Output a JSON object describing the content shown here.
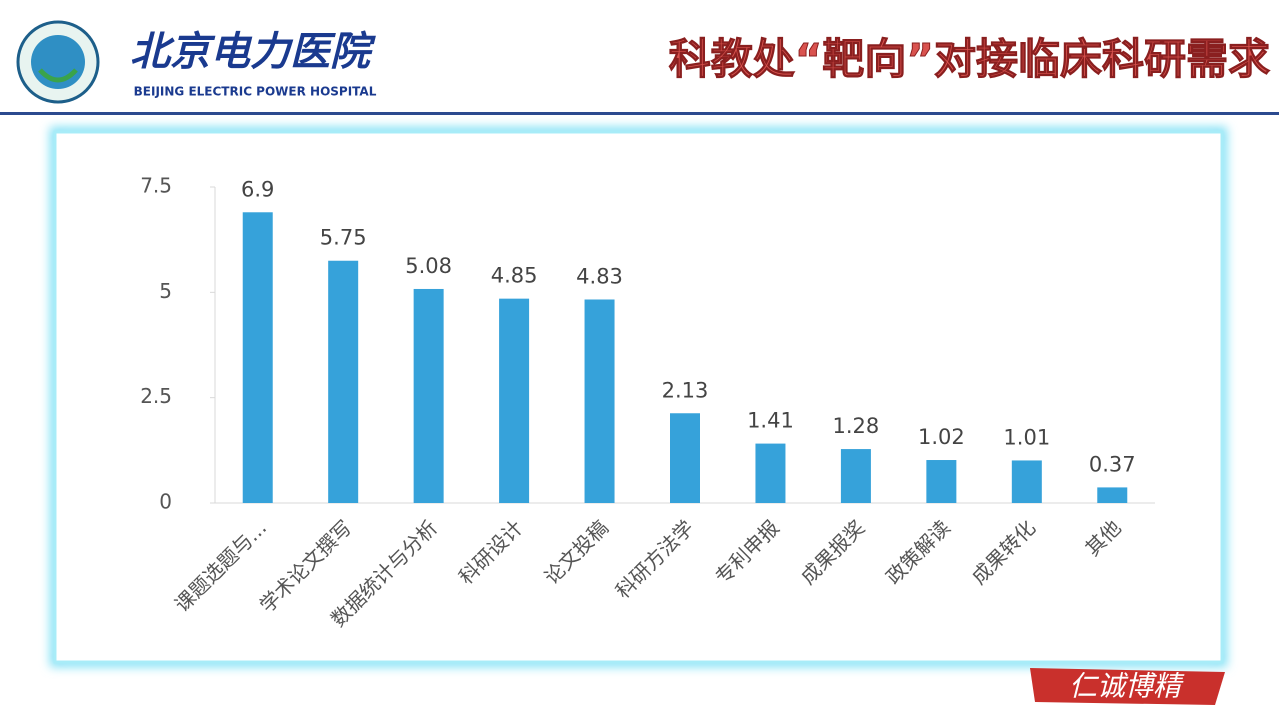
{
  "header": {
    "hospital_name": "北京电力医院",
    "hospital_name_en": "BEIJING ELECTRIC POWER HOSPITAL",
    "title": "科教处“靶向”对接临床科研需求"
  },
  "footer": {
    "motto": "仁诚博精"
  },
  "chart_data": {
    "type": "bar",
    "categories": [
      "课题选题与...",
      "学术论文撰写",
      "数据统计与分析",
      "科研设计",
      "论文投稿",
      "科研方法学",
      "专利申报",
      "成果报奖",
      "政策解读",
      "成果转化",
      "其他"
    ],
    "values": [
      6.9,
      5.75,
      5.08,
      4.85,
      4.83,
      2.13,
      1.41,
      1.28,
      1.02,
      1.01,
      0.37
    ],
    "color": "#36a2da",
    "ylim": [
      0,
      7.5
    ],
    "yticks": [
      0,
      2.5,
      5,
      7.5
    ],
    "grid": false
  }
}
